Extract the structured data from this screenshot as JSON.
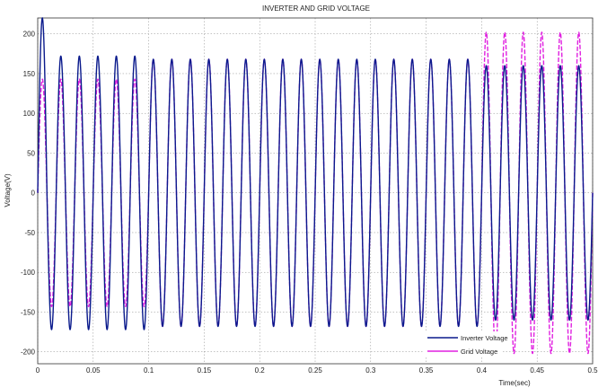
{
  "chart_data": {
    "type": "line",
    "title": "INVERTER AND GRID VOLTAGE",
    "xlabel": "Time(sec)",
    "ylabel": "Voltage(V)",
    "xlim": [
      0,
      0.5
    ],
    "ylim": [
      -215,
      220
    ],
    "xticks": [
      0,
      0.05,
      0.1,
      0.15,
      0.2,
      0.25,
      0.3,
      0.35,
      0.4,
      0.45,
      0.5
    ],
    "xtick_labels": [
      "0",
      "0.05",
      "0.1",
      "0.15",
      "0.2",
      "0.25",
      "0.3",
      "0.35",
      "0.4",
      "0.45",
      "0.5"
    ],
    "yticks": [
      -200,
      -150,
      -100,
      -50,
      0,
      50,
      100,
      150,
      200
    ],
    "ytick_labels": [
      "-200",
      "-150",
      "-100",
      "-50",
      "0",
      "50",
      "100",
      "150",
      "200"
    ],
    "grid": true,
    "legend_position": "bottom-right",
    "frequency_hz": 60,
    "series": [
      {
        "name": "Inverter Voltage",
        "color": "#0a1a8c",
        "line_style": "solid",
        "amplitude_segments": [
          {
            "t_start": 0.0,
            "t_end": 0.1,
            "positive_peak": 172,
            "negative_peak": -172,
            "initial_overshoot": 220
          },
          {
            "t_start": 0.1,
            "t_end": 0.4,
            "positive_peak": 168,
            "negative_peak": -168
          },
          {
            "t_start": 0.4,
            "t_end": 0.5,
            "positive_peak": 160,
            "negative_peak": -160
          }
        ]
      },
      {
        "name": "Grid Voltage",
        "color": "#e020e0",
        "line_style": "dashed",
        "amplitude_segments": [
          {
            "t_start": 0.0,
            "t_end": 0.1,
            "positive_peak": 143,
            "negative_peak": -143
          },
          {
            "t_start": 0.1,
            "t_end": 0.4,
            "positive_peak": 168,
            "negative_peak": -168
          },
          {
            "t_start": 0.4,
            "t_end": 0.5,
            "positive_peak": 202,
            "negative_peak": -202
          }
        ]
      }
    ]
  }
}
